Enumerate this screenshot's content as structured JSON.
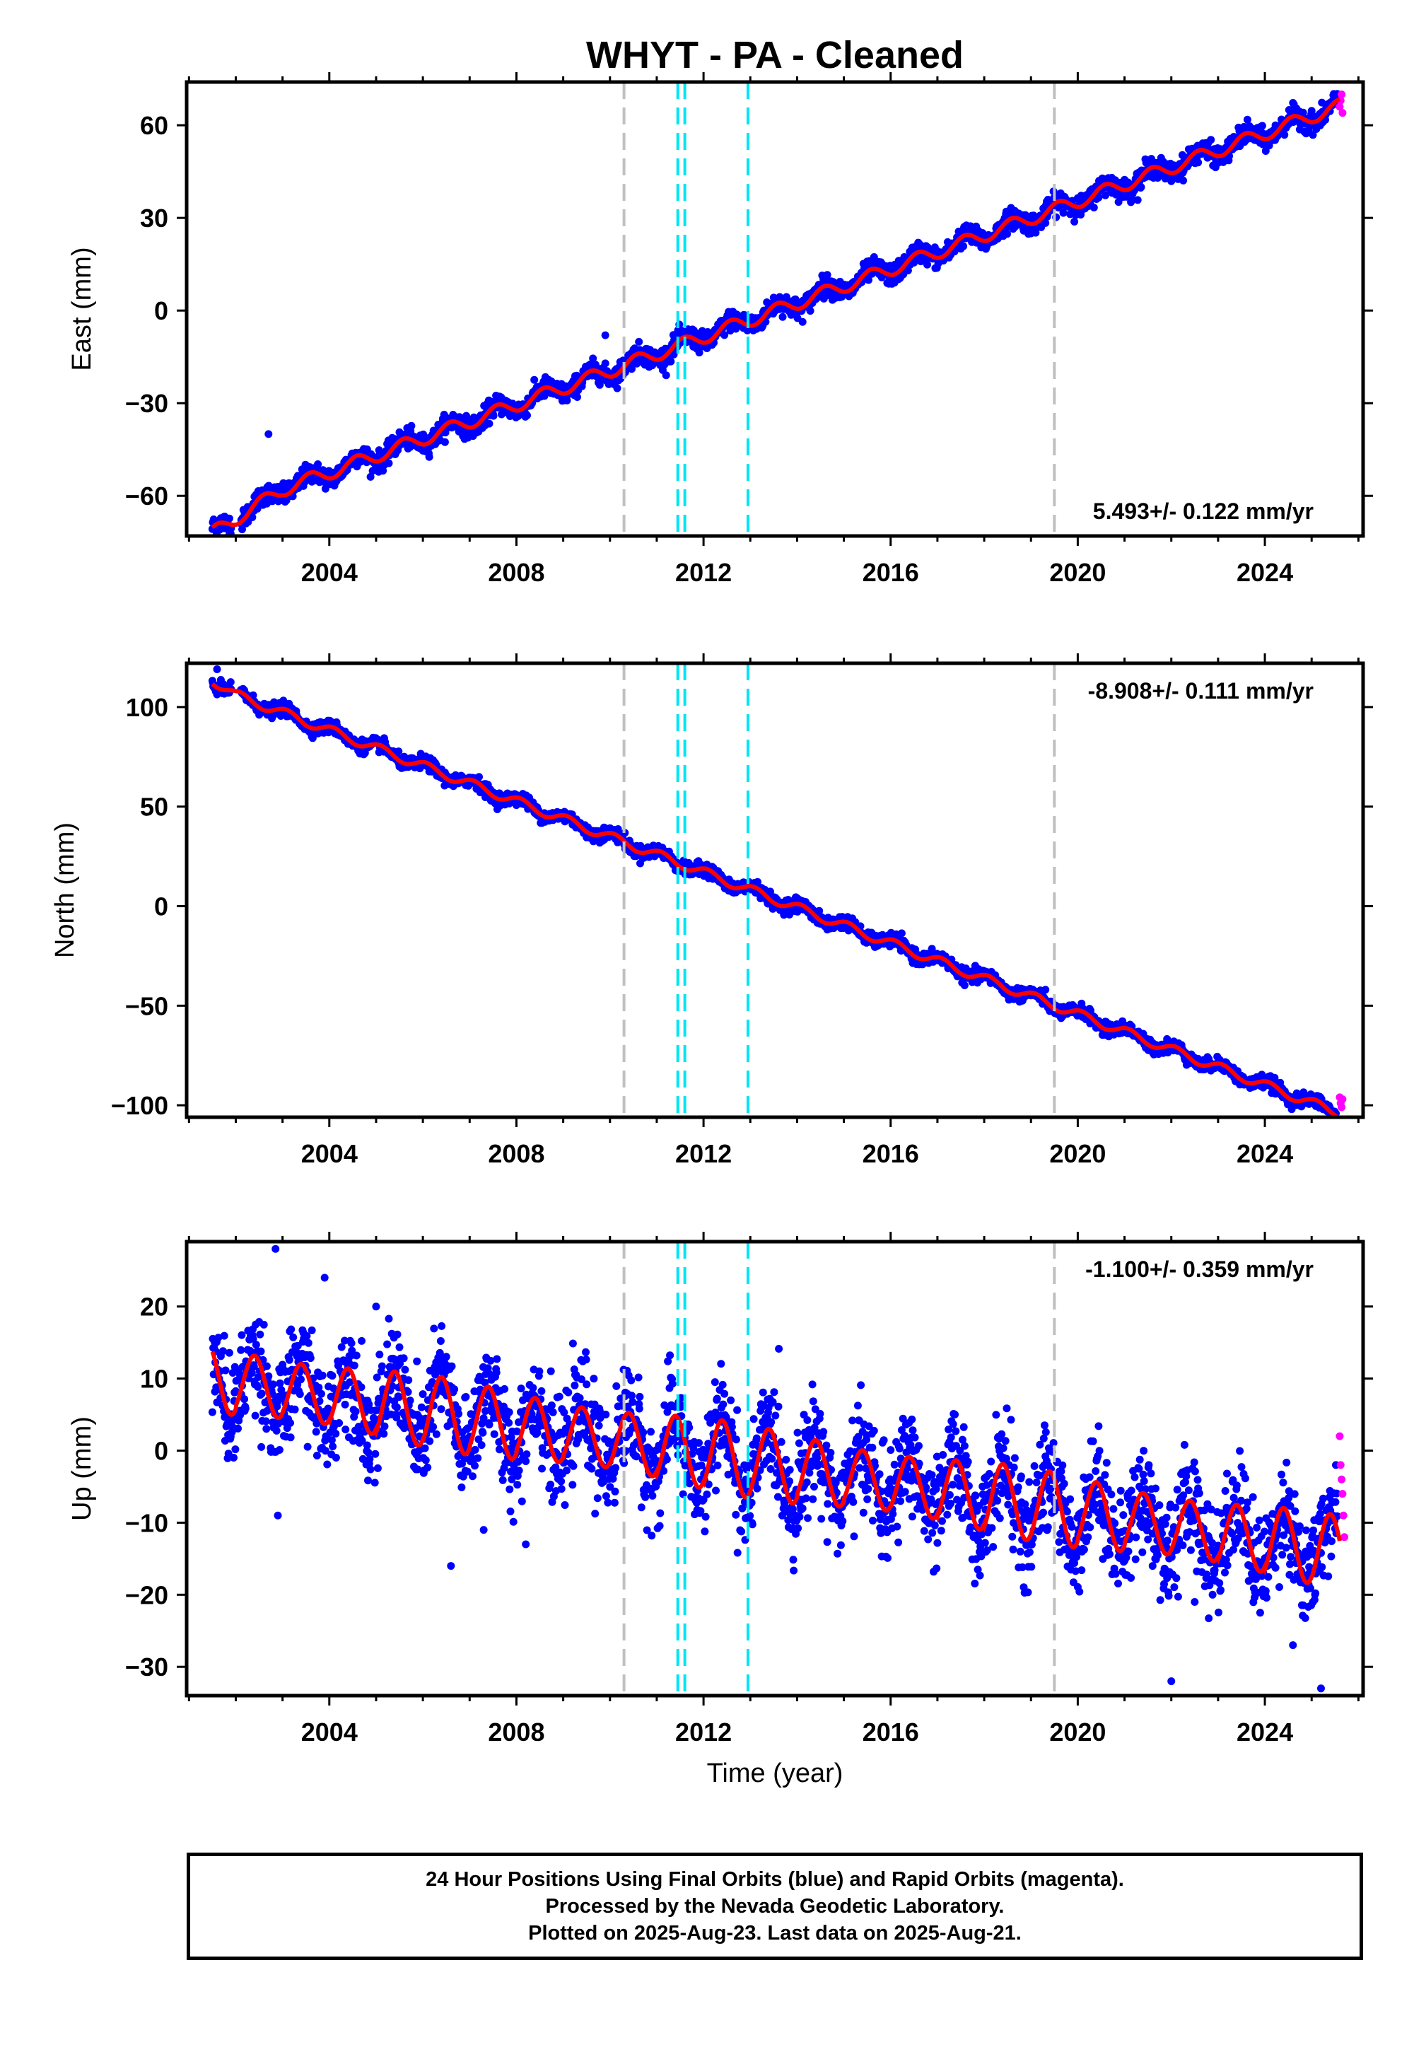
{
  "title": "WHYT  - PA - Cleaned",
  "xlabel": "Time (year)",
  "footer": {
    "line1": "24 Hour Positions Using Final Orbits (blue) and Rapid Orbits (magenta).",
    "line2": "Processed by the Nevada Geodetic Laboratory.",
    "line3": "Plotted on 2025-Aug-23. Last data on 2025-Aug-21."
  },
  "colors": {
    "final_orbits": "#0000ff",
    "rapid_orbits": "#ff00ff",
    "model_fit": "#ff0000",
    "equipment_change": "#c0c0c0",
    "earthquake": "#00e5f5"
  },
  "chart_data": [
    {
      "type": "scatter",
      "component": "east",
      "ylabel": "East (mm)",
      "xlim": [
        2000.95,
        2026.1
      ],
      "ylim": [
        -73,
        74
      ],
      "xticks": [
        2004,
        2008,
        2012,
        2016,
        2020,
        2024
      ],
      "yticks": [
        -60,
        -30,
        0,
        30,
        60
      ],
      "rate_label": "5.493+/- 0.122 mm/yr",
      "rate_position": "bottom-right",
      "model": {
        "start": 2001.5,
        "end": 2025.6,
        "value_at_2012": -8.5,
        "rate": 5.493,
        "seasonal_amplitude": 2.2,
        "seasonal_phase": 4.2,
        "early_offset": -6,
        "early_offset_until": 2003.0
      },
      "scatter": {
        "noise": 1.6,
        "outliers": [
          [
            2002.7,
            -40
          ],
          [
            2009.9,
            -8
          ],
          [
            2001.6,
            -69
          ]
        ]
      },
      "rapid_orbit_values": [
        66,
        68,
        70,
        64
      ],
      "equipment_changes": [
        2010.3,
        2019.5
      ],
      "earthquakes": [
        2011.45,
        2011.6,
        2012.95
      ]
    },
    {
      "type": "scatter",
      "component": "north",
      "ylabel": "North (mm)",
      "xlim": [
        2000.95,
        2026.1
      ],
      "ylim": [
        -106,
        122
      ],
      "xticks": [
        2004,
        2008,
        2012,
        2016,
        2020,
        2024
      ],
      "yticks": [
        -100,
        -50,
        0,
        50,
        100
      ],
      "rate_label": "-8.908+/- 0.111 mm/yr",
      "rate_position": "top-right",
      "model": {
        "start": 2001.5,
        "end": 2025.6,
        "value_at_2012": 17,
        "rate": -8.908,
        "seasonal_amplitude": 2.3,
        "seasonal_phase": 1.0,
        "early_offset": 3,
        "early_offset_until": 2002.0
      },
      "scatter": {
        "noise": 1.6,
        "outliers": [
          [
            2001.6,
            119
          ]
        ]
      },
      "rapid_orbit_values": [
        -96,
        -99,
        -101,
        -97
      ],
      "equipment_changes": [
        2010.3,
        2019.5
      ],
      "earthquakes": [
        2011.45,
        2011.6,
        2012.95
      ]
    },
    {
      "type": "scatter",
      "component": "up",
      "ylabel": "Up (mm)",
      "xlim": [
        2000.95,
        2026.1
      ],
      "ylim": [
        -34,
        29
      ],
      "xticks": [
        2004,
        2008,
        2012,
        2016,
        2020,
        2024
      ],
      "yticks": [
        -30,
        -20,
        -10,
        0,
        10,
        20
      ],
      "rate_label": "-1.100+/- 0.359 mm/yr",
      "rate_position": "top-right",
      "model": {
        "start": 2001.5,
        "end": 2025.6,
        "value_at_2012": 1.5,
        "rate": -1.1,
        "seasonal_amplitude": 4.2,
        "seasonal_phase": 0.0,
        "trend_2005": 10,
        "early_offset": 0,
        "early_offset_until": 2001.0
      },
      "scatter": {
        "noise": 3.5,
        "outliers": [
          [
            2002.85,
            28
          ],
          [
            2003.9,
            24
          ],
          [
            2005.0,
            20
          ],
          [
            2007.3,
            -11
          ],
          [
            2008.2,
            -13
          ],
          [
            2006.6,
            -16
          ],
          [
            2002.9,
            -9
          ],
          [
            2022.0,
            -32
          ],
          [
            2024.6,
            -27
          ],
          [
            2025.2,
            -33
          ],
          [
            2021.6,
            -16
          ],
          [
            2022.5,
            -21
          ]
        ]
      },
      "rapid_orbit_values": [
        2,
        -2,
        -4,
        -6,
        -9,
        -12
      ],
      "equipment_changes": [
        2010.3,
        2019.5
      ],
      "earthquakes": [
        2011.45,
        2011.6,
        2012.95
      ]
    }
  ]
}
